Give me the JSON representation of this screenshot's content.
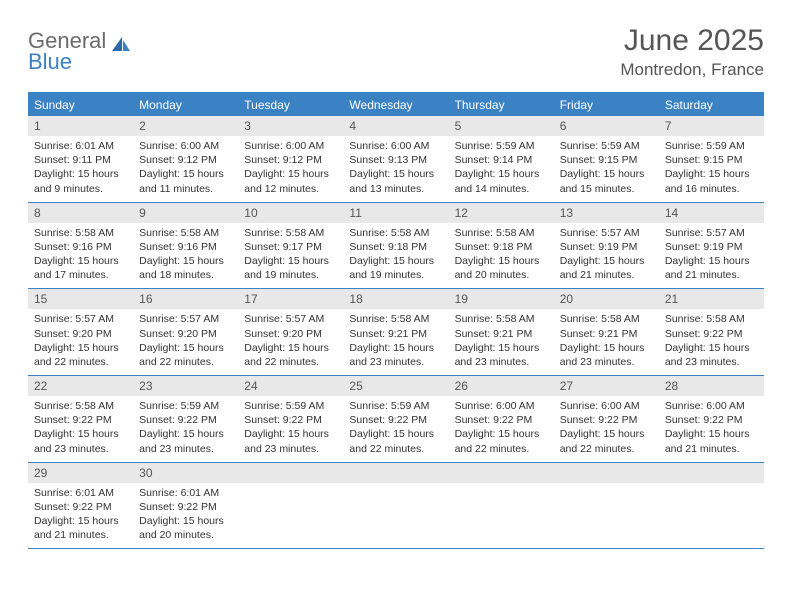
{
  "logo": {
    "line1": "General",
    "line2": "Blue"
  },
  "title": "June 2025",
  "location": "Montredon, France",
  "dayNames": [
    "Sunday",
    "Monday",
    "Tuesday",
    "Wednesday",
    "Thursday",
    "Friday",
    "Saturday"
  ],
  "colors": {
    "accent": "#3b82c4",
    "headerBg": "#3b82c4",
    "dayNumBg": "#e8e8e8",
    "text": "#333333",
    "titleText": "#555555"
  },
  "weeks": [
    [
      {
        "n": "1",
        "sr": "Sunrise: 6:01 AM",
        "ss": "Sunset: 9:11 PM",
        "dl1": "Daylight: 15 hours",
        "dl2": "and 9 minutes."
      },
      {
        "n": "2",
        "sr": "Sunrise: 6:00 AM",
        "ss": "Sunset: 9:12 PM",
        "dl1": "Daylight: 15 hours",
        "dl2": "and 11 minutes."
      },
      {
        "n": "3",
        "sr": "Sunrise: 6:00 AM",
        "ss": "Sunset: 9:12 PM",
        "dl1": "Daylight: 15 hours",
        "dl2": "and 12 minutes."
      },
      {
        "n": "4",
        "sr": "Sunrise: 6:00 AM",
        "ss": "Sunset: 9:13 PM",
        "dl1": "Daylight: 15 hours",
        "dl2": "and 13 minutes."
      },
      {
        "n": "5",
        "sr": "Sunrise: 5:59 AM",
        "ss": "Sunset: 9:14 PM",
        "dl1": "Daylight: 15 hours",
        "dl2": "and 14 minutes."
      },
      {
        "n": "6",
        "sr": "Sunrise: 5:59 AM",
        "ss": "Sunset: 9:15 PM",
        "dl1": "Daylight: 15 hours",
        "dl2": "and 15 minutes."
      },
      {
        "n": "7",
        "sr": "Sunrise: 5:59 AM",
        "ss": "Sunset: 9:15 PM",
        "dl1": "Daylight: 15 hours",
        "dl2": "and 16 minutes."
      }
    ],
    [
      {
        "n": "8",
        "sr": "Sunrise: 5:58 AM",
        "ss": "Sunset: 9:16 PM",
        "dl1": "Daylight: 15 hours",
        "dl2": "and 17 minutes."
      },
      {
        "n": "9",
        "sr": "Sunrise: 5:58 AM",
        "ss": "Sunset: 9:16 PM",
        "dl1": "Daylight: 15 hours",
        "dl2": "and 18 minutes."
      },
      {
        "n": "10",
        "sr": "Sunrise: 5:58 AM",
        "ss": "Sunset: 9:17 PM",
        "dl1": "Daylight: 15 hours",
        "dl2": "and 19 minutes."
      },
      {
        "n": "11",
        "sr": "Sunrise: 5:58 AM",
        "ss": "Sunset: 9:18 PM",
        "dl1": "Daylight: 15 hours",
        "dl2": "and 19 minutes."
      },
      {
        "n": "12",
        "sr": "Sunrise: 5:58 AM",
        "ss": "Sunset: 9:18 PM",
        "dl1": "Daylight: 15 hours",
        "dl2": "and 20 minutes."
      },
      {
        "n": "13",
        "sr": "Sunrise: 5:57 AM",
        "ss": "Sunset: 9:19 PM",
        "dl1": "Daylight: 15 hours",
        "dl2": "and 21 minutes."
      },
      {
        "n": "14",
        "sr": "Sunrise: 5:57 AM",
        "ss": "Sunset: 9:19 PM",
        "dl1": "Daylight: 15 hours",
        "dl2": "and 21 minutes."
      }
    ],
    [
      {
        "n": "15",
        "sr": "Sunrise: 5:57 AM",
        "ss": "Sunset: 9:20 PM",
        "dl1": "Daylight: 15 hours",
        "dl2": "and 22 minutes."
      },
      {
        "n": "16",
        "sr": "Sunrise: 5:57 AM",
        "ss": "Sunset: 9:20 PM",
        "dl1": "Daylight: 15 hours",
        "dl2": "and 22 minutes."
      },
      {
        "n": "17",
        "sr": "Sunrise: 5:57 AM",
        "ss": "Sunset: 9:20 PM",
        "dl1": "Daylight: 15 hours",
        "dl2": "and 22 minutes."
      },
      {
        "n": "18",
        "sr": "Sunrise: 5:58 AM",
        "ss": "Sunset: 9:21 PM",
        "dl1": "Daylight: 15 hours",
        "dl2": "and 23 minutes."
      },
      {
        "n": "19",
        "sr": "Sunrise: 5:58 AM",
        "ss": "Sunset: 9:21 PM",
        "dl1": "Daylight: 15 hours",
        "dl2": "and 23 minutes."
      },
      {
        "n": "20",
        "sr": "Sunrise: 5:58 AM",
        "ss": "Sunset: 9:21 PM",
        "dl1": "Daylight: 15 hours",
        "dl2": "and 23 minutes."
      },
      {
        "n": "21",
        "sr": "Sunrise: 5:58 AM",
        "ss": "Sunset: 9:22 PM",
        "dl1": "Daylight: 15 hours",
        "dl2": "and 23 minutes."
      }
    ],
    [
      {
        "n": "22",
        "sr": "Sunrise: 5:58 AM",
        "ss": "Sunset: 9:22 PM",
        "dl1": "Daylight: 15 hours",
        "dl2": "and 23 minutes."
      },
      {
        "n": "23",
        "sr": "Sunrise: 5:59 AM",
        "ss": "Sunset: 9:22 PM",
        "dl1": "Daylight: 15 hours",
        "dl2": "and 23 minutes."
      },
      {
        "n": "24",
        "sr": "Sunrise: 5:59 AM",
        "ss": "Sunset: 9:22 PM",
        "dl1": "Daylight: 15 hours",
        "dl2": "and 23 minutes."
      },
      {
        "n": "25",
        "sr": "Sunrise: 5:59 AM",
        "ss": "Sunset: 9:22 PM",
        "dl1": "Daylight: 15 hours",
        "dl2": "and 22 minutes."
      },
      {
        "n": "26",
        "sr": "Sunrise: 6:00 AM",
        "ss": "Sunset: 9:22 PM",
        "dl1": "Daylight: 15 hours",
        "dl2": "and 22 minutes."
      },
      {
        "n": "27",
        "sr": "Sunrise: 6:00 AM",
        "ss": "Sunset: 9:22 PM",
        "dl1": "Daylight: 15 hours",
        "dl2": "and 22 minutes."
      },
      {
        "n": "28",
        "sr": "Sunrise: 6:00 AM",
        "ss": "Sunset: 9:22 PM",
        "dl1": "Daylight: 15 hours",
        "dl2": "and 21 minutes."
      }
    ],
    [
      {
        "n": "29",
        "sr": "Sunrise: 6:01 AM",
        "ss": "Sunset: 9:22 PM",
        "dl1": "Daylight: 15 hours",
        "dl2": "and 21 minutes."
      },
      {
        "n": "30",
        "sr": "Sunrise: 6:01 AM",
        "ss": "Sunset: 9:22 PM",
        "dl1": "Daylight: 15 hours",
        "dl2": "and 20 minutes."
      },
      {
        "n": "",
        "sr": "",
        "ss": "",
        "dl1": "",
        "dl2": ""
      },
      {
        "n": "",
        "sr": "",
        "ss": "",
        "dl1": "",
        "dl2": ""
      },
      {
        "n": "",
        "sr": "",
        "ss": "",
        "dl1": "",
        "dl2": ""
      },
      {
        "n": "",
        "sr": "",
        "ss": "",
        "dl1": "",
        "dl2": ""
      },
      {
        "n": "",
        "sr": "",
        "ss": "",
        "dl1": "",
        "dl2": ""
      }
    ]
  ]
}
